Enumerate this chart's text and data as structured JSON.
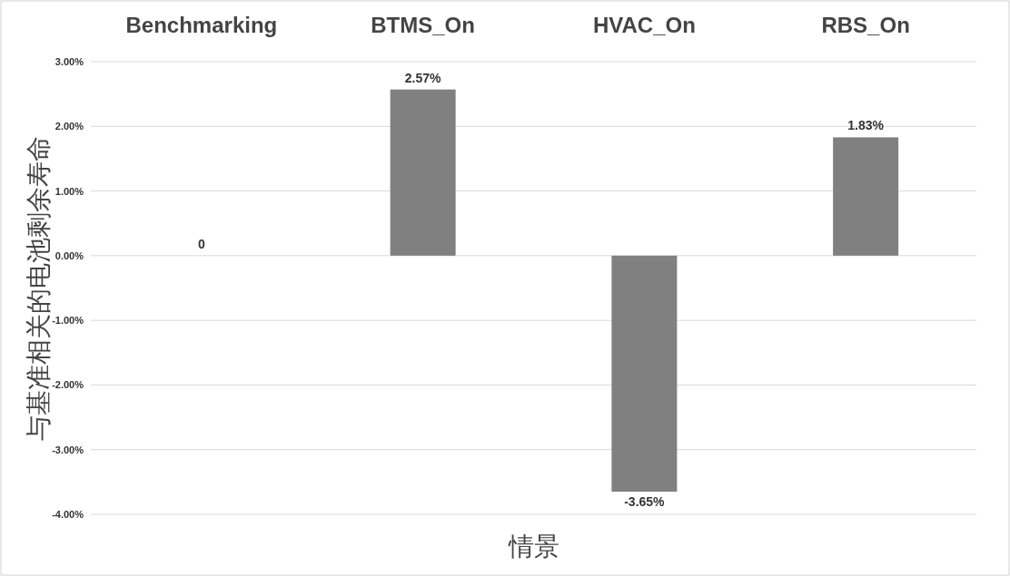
{
  "chart_data": {
    "type": "bar",
    "xlabel": "情景",
    "ylabel": "与基准相关的电池剩余寿命",
    "categories": [
      "Benchmarking",
      "BTMS_On",
      "HVAC_On",
      "RBS_On"
    ],
    "values": [
      0,
      2.57,
      -3.65,
      1.83
    ],
    "value_labels": [
      "0",
      "2.57%",
      "-3.65%",
      "1.83%"
    ],
    "color": "#808080",
    "ylim": [
      -4,
      3
    ],
    "yticks": [
      {
        "value": 3,
        "label": "3.00%"
      },
      {
        "value": 2,
        "label": "2.00%"
      },
      {
        "value": 1,
        "label": "1.00%"
      },
      {
        "value": 0,
        "label": "0.00%"
      },
      {
        "value": -1,
        "label": "-1.00%"
      },
      {
        "value": -2,
        "label": "-2.00%"
      },
      {
        "value": -3,
        "label": "-3.00%"
      },
      {
        "value": -4,
        "label": "-4.00%"
      }
    ],
    "grid": "y"
  }
}
